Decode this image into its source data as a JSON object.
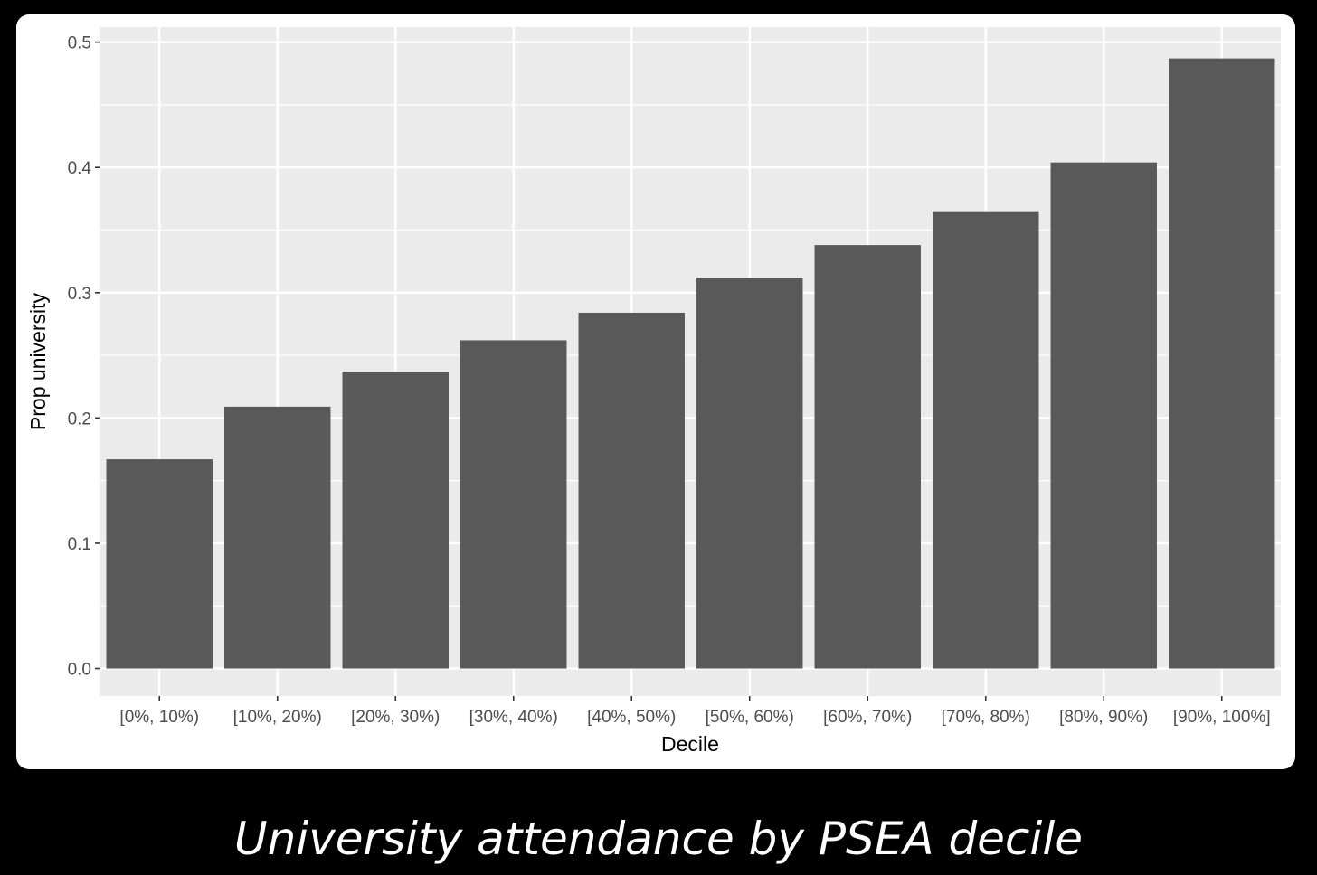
{
  "caption": "University attendance by PSEA decile",
  "chart_data": {
    "type": "bar",
    "title": "",
    "xlabel": "Decile",
    "ylabel": "Prop university",
    "categories": [
      "[0%, 10%)",
      "[10%, 20%)",
      "[20%, 30%)",
      "[30%, 40%)",
      "[40%, 50%)",
      "[50%, 60%)",
      "[60%, 70%)",
      "[70%, 80%)",
      "[80%, 90%)",
      "[90%, 100%]"
    ],
    "values": [
      0.167,
      0.209,
      0.237,
      0.262,
      0.284,
      0.312,
      0.338,
      0.365,
      0.404,
      0.487
    ],
    "ylim": [
      -0.022,
      0.512
    ],
    "yticks": [
      0.0,
      0.1,
      0.2,
      0.3,
      0.4,
      0.5
    ],
    "ytick_labels": [
      "0.0",
      "0.1",
      "0.2",
      "0.3",
      "0.4",
      "0.5"
    ],
    "grid": true,
    "legend": "none",
    "colors": {
      "bar": "#595959",
      "panel": "#ebebeb",
      "grid": "#ffffff",
      "tick": "#333333"
    }
  }
}
